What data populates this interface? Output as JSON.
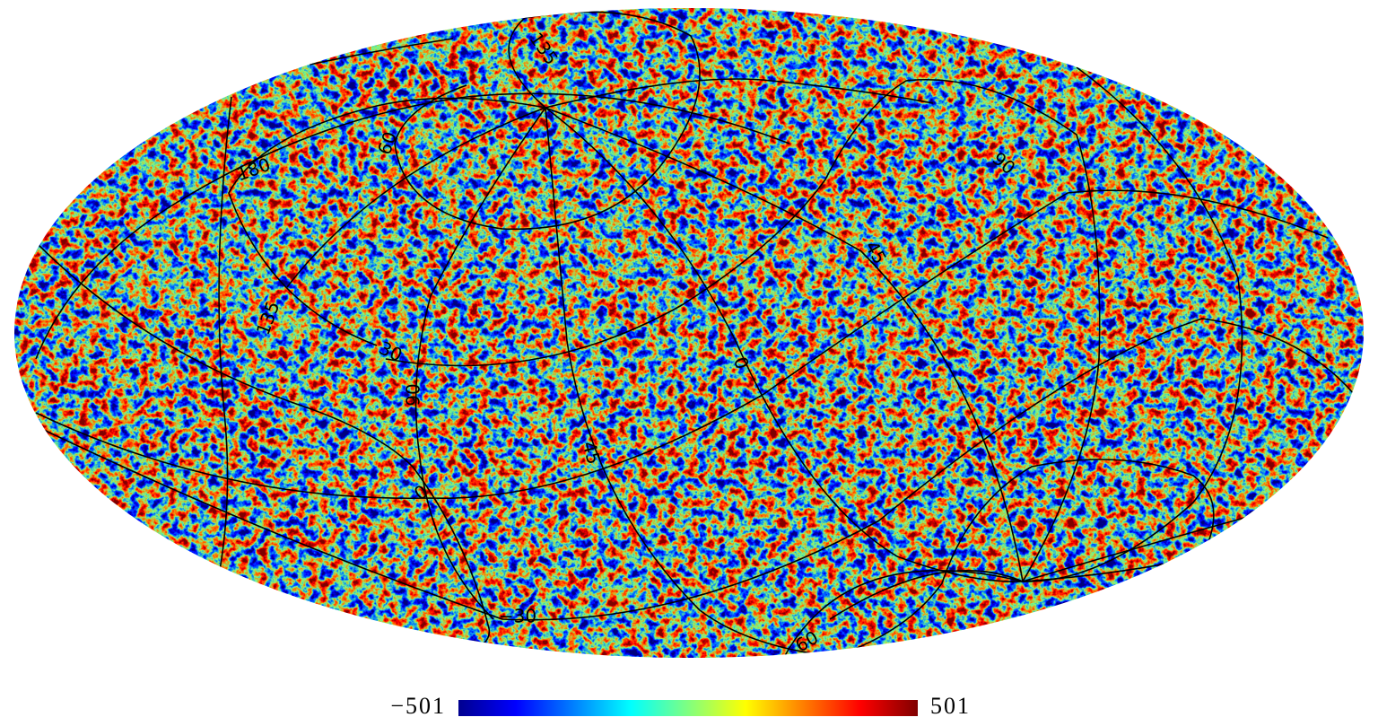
{
  "map": {
    "graticule_labels": [
      "135",
      "60",
      "180",
      "90",
      "45",
      "135",
      "30",
      "90",
      "0",
      "45",
      "0",
      "−30",
      "60"
    ],
    "colorbar": {
      "min": "−501",
      "max": "501"
    }
  }
}
